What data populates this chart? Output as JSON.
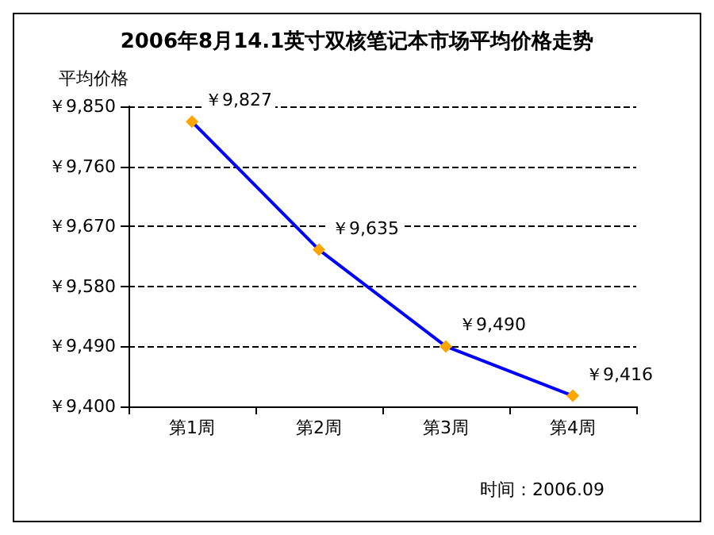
{
  "chart_data": {
    "type": "line",
    "title": "2006年8月14.1英寸双核笔记本市场平均价格走势",
    "ylabel": "平均价格",
    "categories": [
      "第1周",
      "第2周",
      "第3周",
      "第4周"
    ],
    "series": [
      {
        "color": "#0000ff",
        "colors": [
          "#ffa500",
          "#ffa500",
          "#ffa500",
          "#ffa500"
        ],
        "values": [
          9827,
          9635,
          9490,
          9416
        ],
        "value_labels": [
          "￥9,827",
          "￥9,635",
          "￥9,490",
          "￥9,416"
        ]
      }
    ],
    "ylim": [
      9400,
      9850
    ],
    "yticks": [
      {
        "value": 9400,
        "label": "￥9,400"
      },
      {
        "value": 9490,
        "label": "￥9,490"
      },
      {
        "value": 9580,
        "label": "￥9,580"
      },
      {
        "value": 9670,
        "label": "￥9,670"
      },
      {
        "value": 9760,
        "label": "￥9,760"
      },
      {
        "value": 9850,
        "label": "￥9,850"
      }
    ],
    "grid": "y",
    "marker": "diamond",
    "line_style": "solid",
    "annotations": [
      "时间：2006.09"
    ]
  }
}
